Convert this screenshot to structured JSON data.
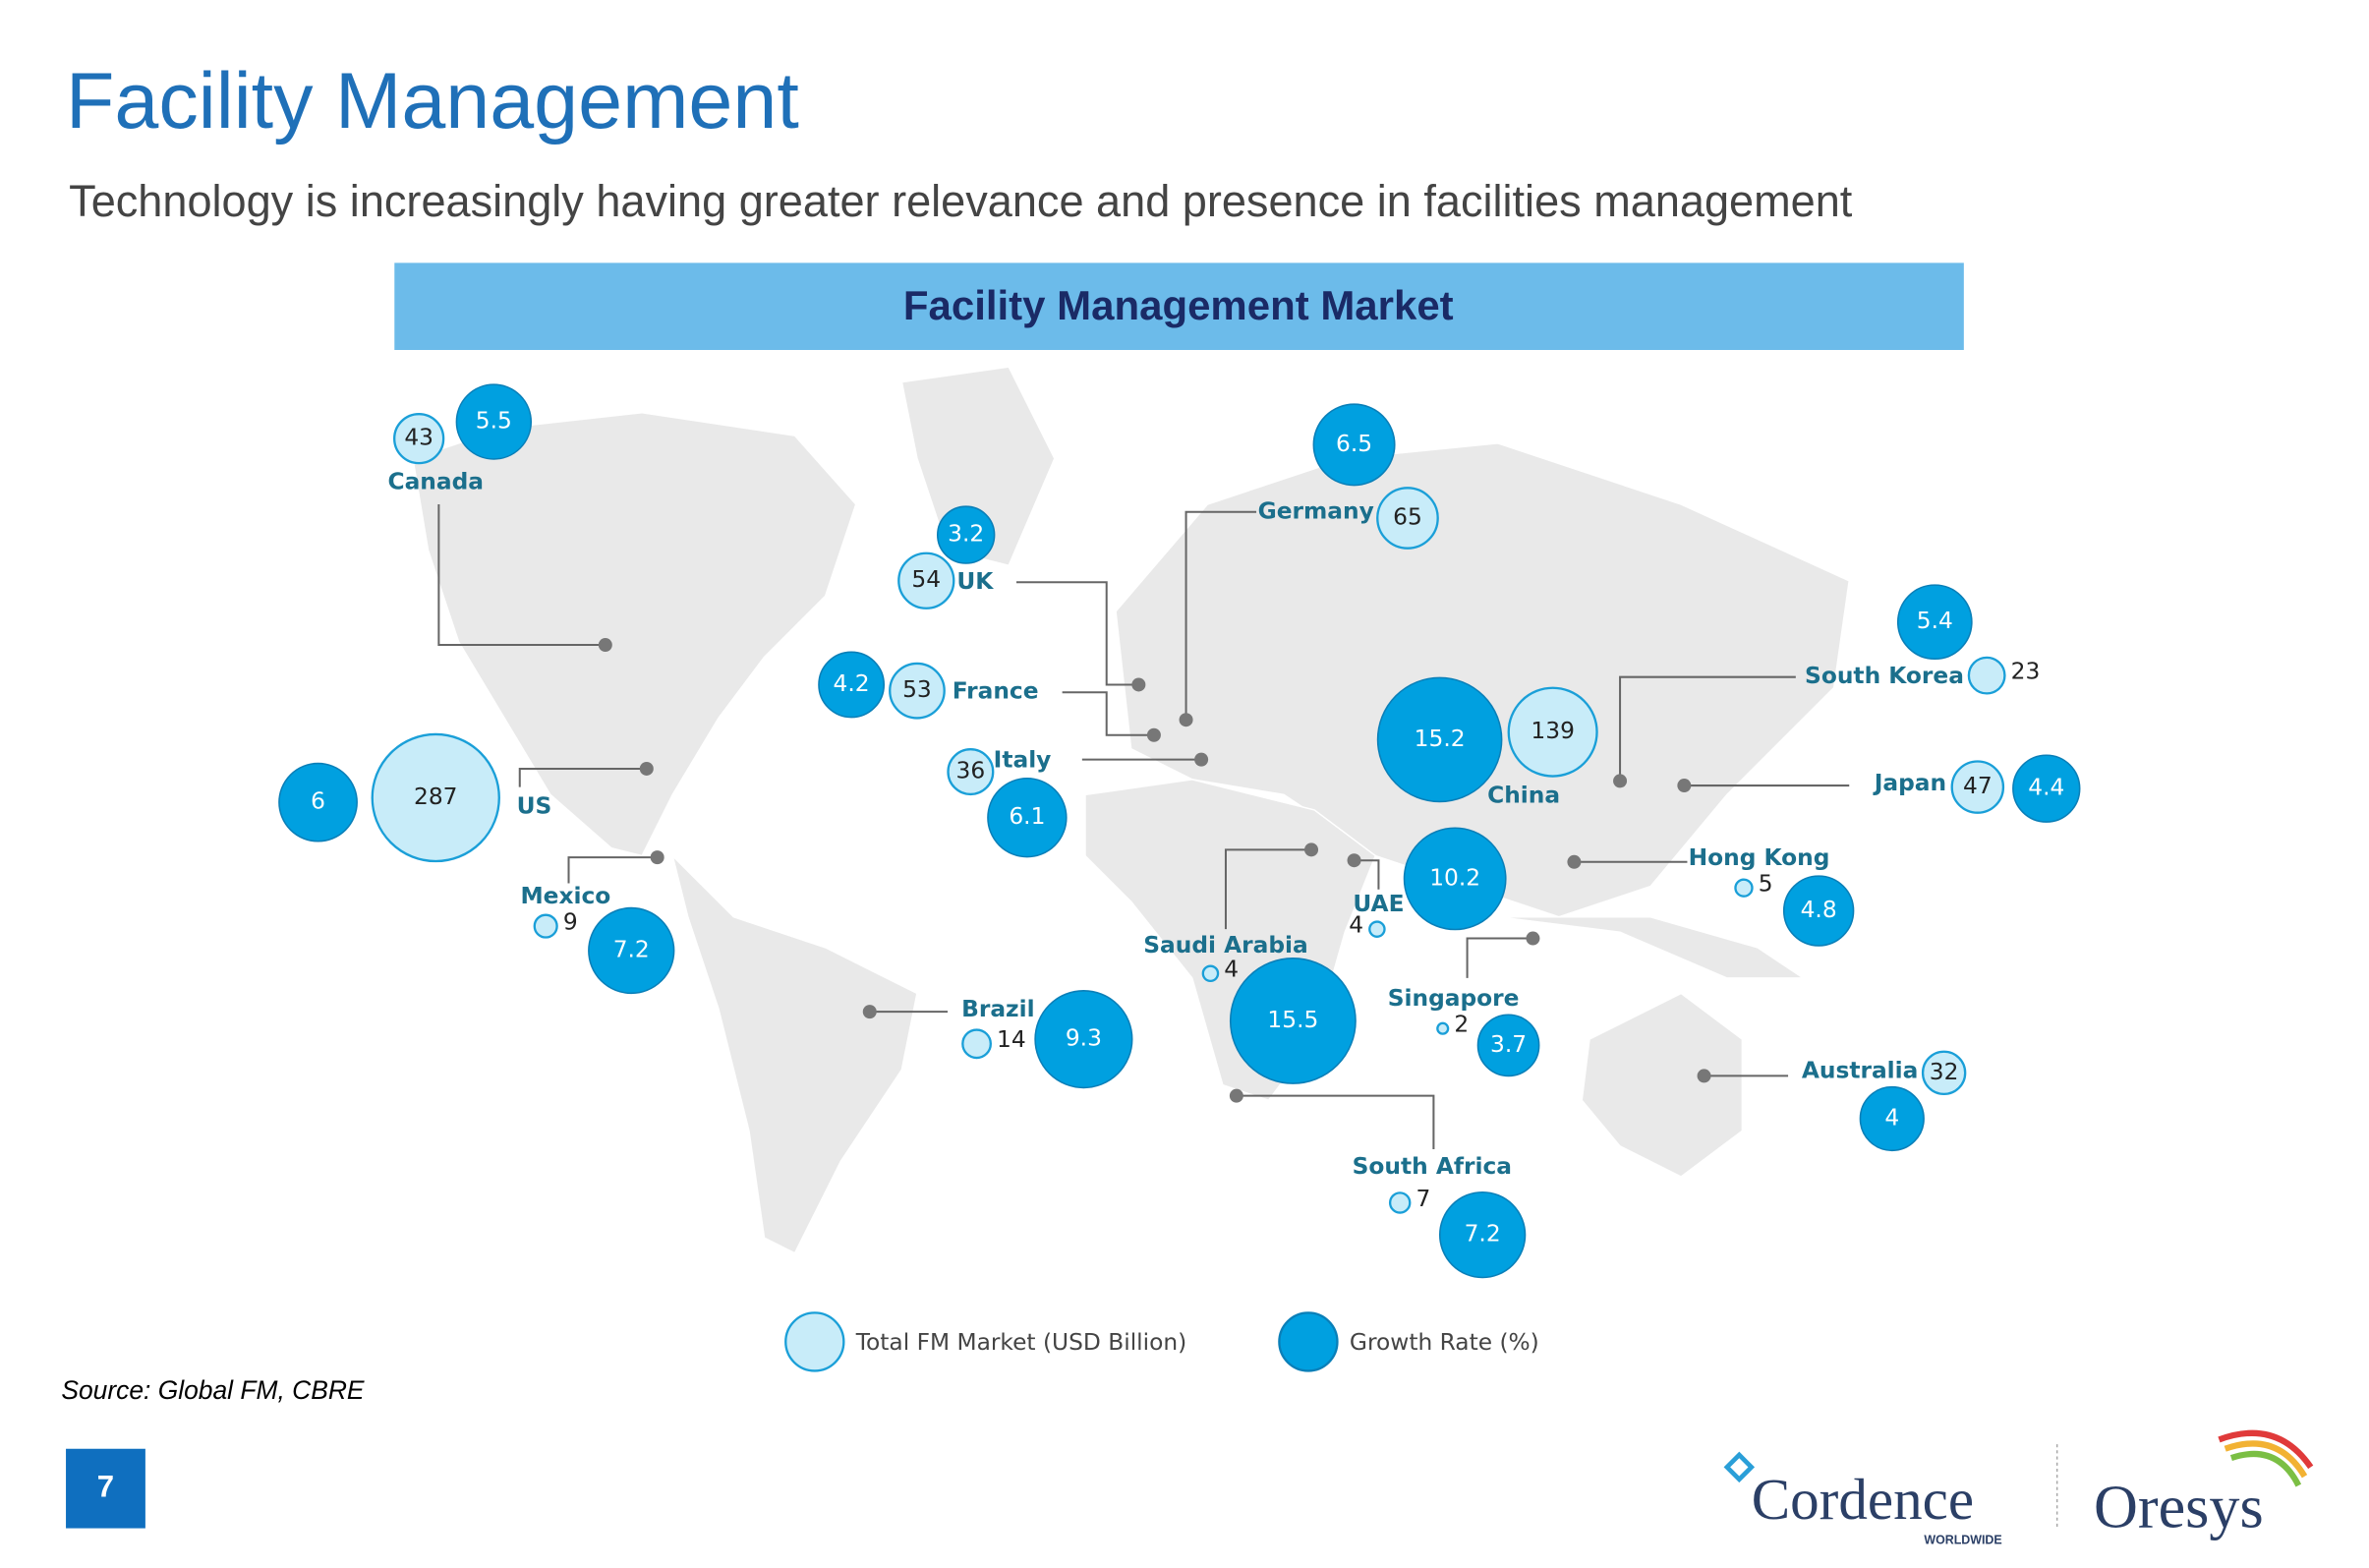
{
  "header": {
    "title": "Facility Management",
    "subtitle": "Technology is increasingly having greater relevance and presence in facilities management"
  },
  "chart_data": {
    "type": "bubble",
    "title": "Facility Management Market",
    "categories": [
      "Canada",
      "US",
      "Mexico",
      "Brazil",
      "UK",
      "France",
      "Italy",
      "Germany",
      "Saudi Arabia",
      "UAE",
      "South Africa",
      "China",
      "Singapore",
      "Hong Kong",
      "South Korea",
      "Japan",
      "Australia"
    ],
    "series": [
      {
        "name": "Total FM Market (USD Billion)",
        "color": "#c8ecf9",
        "values": [
          43,
          287,
          9,
          14,
          54,
          53,
          36,
          65,
          4,
          4,
          7,
          139,
          2,
          5,
          23,
          47,
          32
        ]
      },
      {
        "name": "Growth Rate (%)",
        "color": "#00a0e0",
        "values": [
          5.5,
          6,
          7.2,
          9.3,
          3.2,
          4.2,
          6.1,
          6.5,
          15.5,
          10.2,
          7.2,
          15.2,
          3.7,
          4.8,
          5.4,
          4.4,
          4
        ]
      }
    ]
  },
  "source": "Source: Global FM, CBRE",
  "page_number": "7",
  "logos": {
    "cordence": "Cordence",
    "worldwide": "WORLDWIDE",
    "oresys": "Oresys"
  }
}
